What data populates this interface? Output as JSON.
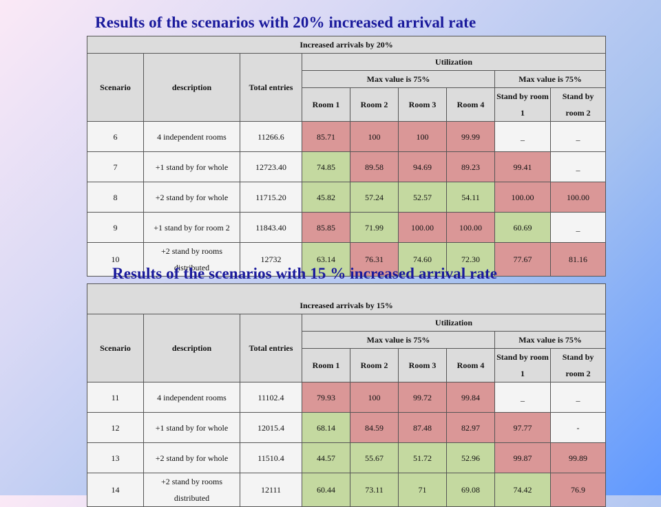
{
  "colors": {
    "title": "#1a1a9c",
    "low_cell": "#c4d9a0",
    "high_cell": "#da9797",
    "header": "#dcdcdc"
  },
  "section1": {
    "title": "Results of the scenarios with 20% increased arrival rate",
    "table_title": "Increased arrivals by 20%",
    "headers": {
      "scenario": "Scenario",
      "description": "description",
      "total_entries": "Total entries",
      "utilization": "Utilization",
      "max_left": "Max value is 75%",
      "max_right": "Max value is 75%",
      "room1": "Room 1",
      "room2": "Room 2",
      "room3": "Room 3",
      "room4": "Room 4",
      "standby1": "Stand by room 1",
      "standby2": "Stand by room 2"
    },
    "rows": [
      {
        "scenario": "6",
        "description": "4 independent rooms",
        "total": "11266.6",
        "room1": "85.71",
        "room2": "100",
        "room3": "100",
        "room4": "99.99",
        "sb1": "_",
        "sb2": "_"
      },
      {
        "scenario": "7",
        "description": "+1 stand by for whole",
        "total": "12723.40",
        "room1": "74.85",
        "room2": "89.58",
        "room3": "94.69",
        "room4": "89.23",
        "sb1": "99.41",
        "sb2": "_"
      },
      {
        "scenario": "8",
        "description": "+2 stand by for whole",
        "total": "11715.20",
        "room1": "45.82",
        "room2": "57.24",
        "room3": "52.57",
        "room4": "54.11",
        "sb1": "100.00",
        "sb2": "100.00"
      },
      {
        "scenario": "9",
        "description": "+1 stand by for room 2",
        "total": "11843.40",
        "room1": "85.85",
        "room2": "71.99",
        "room3": "100.00",
        "room4": "100.00",
        "sb1": "60.69",
        "sb2": "_"
      },
      {
        "scenario": "10",
        "description": "+2 stand by rooms distributed",
        "total": "12732",
        "room1": "63.14",
        "room2": "76.31",
        "room3": "74.60",
        "room4": "72.30",
        "sb1": "77.67",
        "sb2": "81.16"
      }
    ]
  },
  "section2": {
    "title": "Results of the scenarios with 15 % increased arrival rate",
    "table_title": "Increased arrivals by 15%",
    "headers": {
      "scenario": "Scenario",
      "description": "description",
      "total_entries": "Total entries",
      "utilization": "Utilization",
      "max_left": "Max value is 75%",
      "max_right": "Max value is 75%",
      "room1": "Room 1",
      "room2": "Room 2",
      "room3": "Room 3",
      "room4": "Room 4",
      "standby1": "Stand by room 1",
      "standby2": "Stand by room 2"
    },
    "rows": [
      {
        "scenario": "11",
        "description": "4 independent rooms",
        "total": "11102.4",
        "room1": "79.93",
        "room2": "100",
        "room3": "99.72",
        "room4": "99.84",
        "sb1": "_",
        "sb2": "_"
      },
      {
        "scenario": "12",
        "description": "+1 stand by for whole",
        "total": "12015.4",
        "room1": "68.14",
        "room2": "84.59",
        "room3": "87.48",
        "room4": "82.97",
        "sb1": "97.77",
        "sb2": "-"
      },
      {
        "scenario": "13",
        "description": "+2 stand by for whole",
        "total": "11510.4",
        "room1": "44.57",
        "room2": "55.67",
        "room3": "51.72",
        "room4": "52.96",
        "sb1": "99.87",
        "sb2": "99.89"
      },
      {
        "scenario": "14",
        "description": "+2 stand by rooms distributed",
        "total": "12111",
        "room1": "60.44",
        "room2": "73.11",
        "room3": "71",
        "room4": "69.08",
        "sb1": "74.42",
        "sb2": "76.9"
      }
    ]
  }
}
